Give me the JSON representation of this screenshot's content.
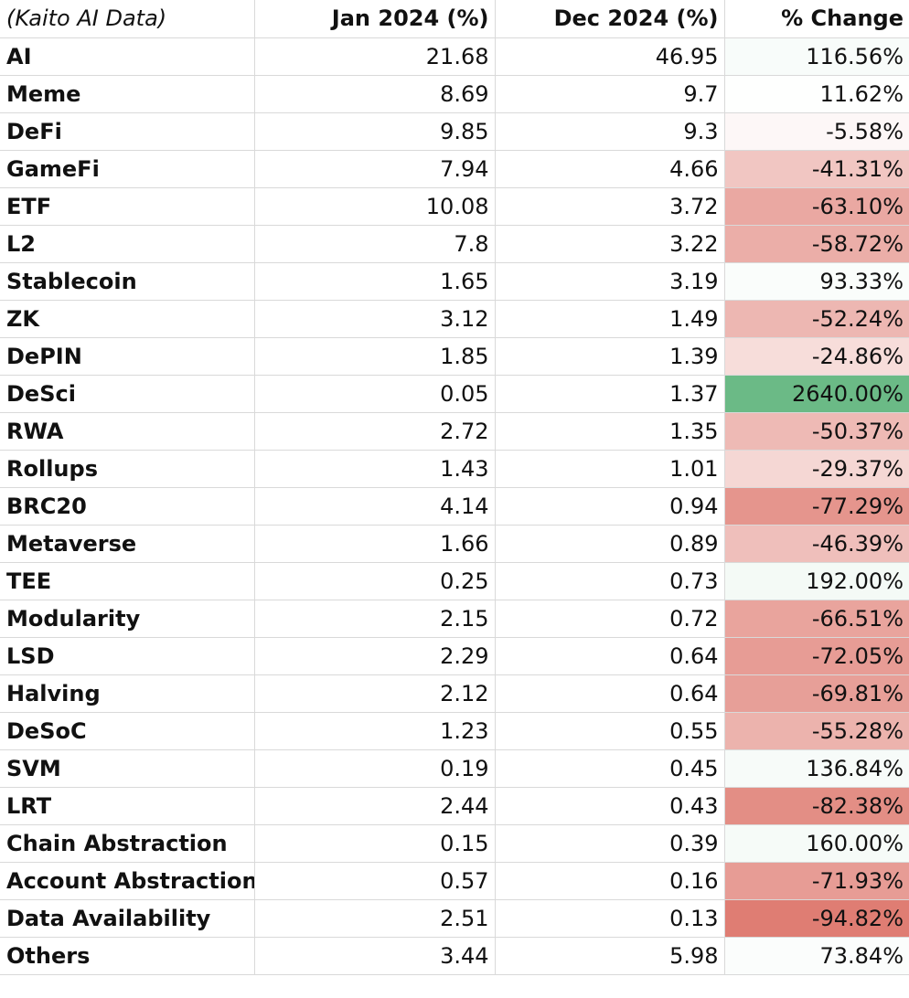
{
  "header": {
    "source": "(Kaito AI Data)",
    "col_jan": "Jan 2024 (%)",
    "col_dec": "Dec 2024 (%)",
    "col_change": "% Change"
  },
  "colors": {
    "max_positive": "#6bba86",
    "min_negative": "#df7d73",
    "neutral": "#ffffff"
  },
  "chart_data": {
    "type": "table",
    "title": "(Kaito AI Data)",
    "columns": [
      "Jan 2024 (%)",
      "Dec 2024 (%)",
      "% Change"
    ],
    "rows": [
      {
        "name": "AI",
        "jan": "21.68",
        "dec": "46.95",
        "change": "116.56%",
        "pct": 116.56
      },
      {
        "name": "Meme",
        "jan": "8.69",
        "dec": "9.7",
        "change": "11.62%",
        "pct": 11.62
      },
      {
        "name": "DeFi",
        "jan": "9.85",
        "dec": "9.3",
        "change": "-5.58%",
        "pct": -5.58
      },
      {
        "name": "GameFi",
        "jan": "7.94",
        "dec": "4.66",
        "change": "-41.31%",
        "pct": -41.31
      },
      {
        "name": "ETF",
        "jan": "10.08",
        "dec": "3.72",
        "change": "-63.10%",
        "pct": -63.1
      },
      {
        "name": "L2",
        "jan": "7.8",
        "dec": "3.22",
        "change": "-58.72%",
        "pct": -58.72
      },
      {
        "name": "Stablecoin",
        "jan": "1.65",
        "dec": "3.19",
        "change": "93.33%",
        "pct": 93.33
      },
      {
        "name": "ZK",
        "jan": "3.12",
        "dec": "1.49",
        "change": "-52.24%",
        "pct": -52.24
      },
      {
        "name": "DePIN",
        "jan": "1.85",
        "dec": "1.39",
        "change": "-24.86%",
        "pct": -24.86
      },
      {
        "name": "DeSci",
        "jan": "0.05",
        "dec": "1.37",
        "change": "2640.00%",
        "pct": 2640.0
      },
      {
        "name": "RWA",
        "jan": "2.72",
        "dec": "1.35",
        "change": "-50.37%",
        "pct": -50.37
      },
      {
        "name": "Rollups",
        "jan": "1.43",
        "dec": "1.01",
        "change": "-29.37%",
        "pct": -29.37
      },
      {
        "name": "BRC20",
        "jan": "4.14",
        "dec": "0.94",
        "change": "-77.29%",
        "pct": -77.29
      },
      {
        "name": "Metaverse",
        "jan": "1.66",
        "dec": "0.89",
        "change": "-46.39%",
        "pct": -46.39
      },
      {
        "name": "TEE",
        "jan": "0.25",
        "dec": "0.73",
        "change": "192.00%",
        "pct": 192.0
      },
      {
        "name": "Modularity",
        "jan": "2.15",
        "dec": "0.72",
        "change": "-66.51%",
        "pct": -66.51
      },
      {
        "name": "LSD",
        "jan": "2.29",
        "dec": "0.64",
        "change": "-72.05%",
        "pct": -72.05
      },
      {
        "name": "Halving",
        "jan": "2.12",
        "dec": "0.64",
        "change": "-69.81%",
        "pct": -69.81
      },
      {
        "name": "DeSoC",
        "jan": "1.23",
        "dec": "0.55",
        "change": "-55.28%",
        "pct": -55.28
      },
      {
        "name": "SVM",
        "jan": "0.19",
        "dec": "0.45",
        "change": "136.84%",
        "pct": 136.84
      },
      {
        "name": "LRT",
        "jan": "2.44",
        "dec": "0.43",
        "change": "-82.38%",
        "pct": -82.38
      },
      {
        "name": "Chain Abstraction",
        "jan": "0.15",
        "dec": "0.39",
        "change": "160.00%",
        "pct": 160.0
      },
      {
        "name": "Account Abstraction",
        "jan": "0.57",
        "dec": "0.16",
        "change": "-71.93%",
        "pct": -71.93
      },
      {
        "name": "Data Availability",
        "jan": "2.51",
        "dec": "0.13",
        "change": "-94.82%",
        "pct": -94.82
      },
      {
        "name": "Others",
        "jan": "3.44",
        "dec": "5.98",
        "change": "73.84%",
        "pct": 73.84
      }
    ]
  }
}
